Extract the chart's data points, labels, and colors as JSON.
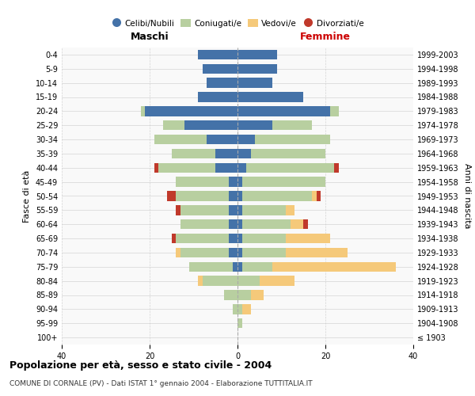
{
  "age_groups": [
    "100+",
    "95-99",
    "90-94",
    "85-89",
    "80-84",
    "75-79",
    "70-74",
    "65-69",
    "60-64",
    "55-59",
    "50-54",
    "45-49",
    "40-44",
    "35-39",
    "30-34",
    "25-29",
    "20-24",
    "15-19",
    "10-14",
    "5-9",
    "0-4"
  ],
  "years": [
    "≤ 1903",
    "1904-1908",
    "1909-1913",
    "1914-1918",
    "1919-1923",
    "1924-1928",
    "1929-1933",
    "1934-1938",
    "1939-1943",
    "1944-1948",
    "1949-1953",
    "1954-1958",
    "1959-1963",
    "1964-1968",
    "1969-1973",
    "1974-1978",
    "1979-1983",
    "1984-1988",
    "1989-1993",
    "1994-1998",
    "1999-2003"
  ],
  "males": {
    "celibi": [
      0,
      0,
      0,
      0,
      0,
      1,
      2,
      2,
      2,
      2,
      2,
      2,
      5,
      5,
      7,
      12,
      21,
      9,
      7,
      8,
      9
    ],
    "coniugati": [
      0,
      0,
      1,
      3,
      8,
      10,
      11,
      12,
      11,
      11,
      12,
      12,
      13,
      10,
      12,
      5,
      1,
      0,
      0,
      0,
      0
    ],
    "vedovi": [
      0,
      0,
      0,
      0,
      1,
      0,
      1,
      0,
      0,
      0,
      0,
      0,
      0,
      0,
      0,
      0,
      0,
      0,
      0,
      0,
      0
    ],
    "divorziati": [
      0,
      0,
      0,
      0,
      0,
      0,
      0,
      1,
      0,
      1,
      2,
      0,
      1,
      0,
      0,
      0,
      0,
      0,
      0,
      0,
      0
    ]
  },
  "females": {
    "nubili": [
      0,
      0,
      0,
      0,
      0,
      1,
      1,
      1,
      1,
      1,
      1,
      1,
      2,
      3,
      4,
      8,
      21,
      15,
      8,
      9,
      9
    ],
    "coniugate": [
      0,
      1,
      1,
      3,
      5,
      7,
      10,
      10,
      11,
      10,
      16,
      19,
      20,
      17,
      17,
      9,
      2,
      0,
      0,
      0,
      0
    ],
    "vedove": [
      0,
      0,
      2,
      3,
      8,
      28,
      14,
      10,
      3,
      2,
      1,
      0,
      0,
      0,
      0,
      0,
      0,
      0,
      0,
      0,
      0
    ],
    "divorziate": [
      0,
      0,
      0,
      0,
      0,
      0,
      0,
      0,
      1,
      0,
      1,
      0,
      1,
      0,
      0,
      0,
      0,
      0,
      0,
      0,
      0
    ]
  },
  "colors": {
    "celibi": "#4472a8",
    "coniugati": "#b8cfa0",
    "vedovi": "#f5c97a",
    "divorziati": "#c0392b"
  },
  "title": "Popolazione per età, sesso e stato civile - 2004",
  "subtitle": "COMUNE DI CORNALE (PV) - Dati ISTAT 1° gennaio 2004 - Elaborazione TUTTITALIA.IT",
  "xlabel_left": "Maschi",
  "xlabel_right": "Femmine",
  "ylabel_left": "Fasce di età",
  "ylabel_right": "Anni di nascita",
  "xlim": 40,
  "bg_color": "#f9f9f9",
  "grid_color": "#cccccc"
}
